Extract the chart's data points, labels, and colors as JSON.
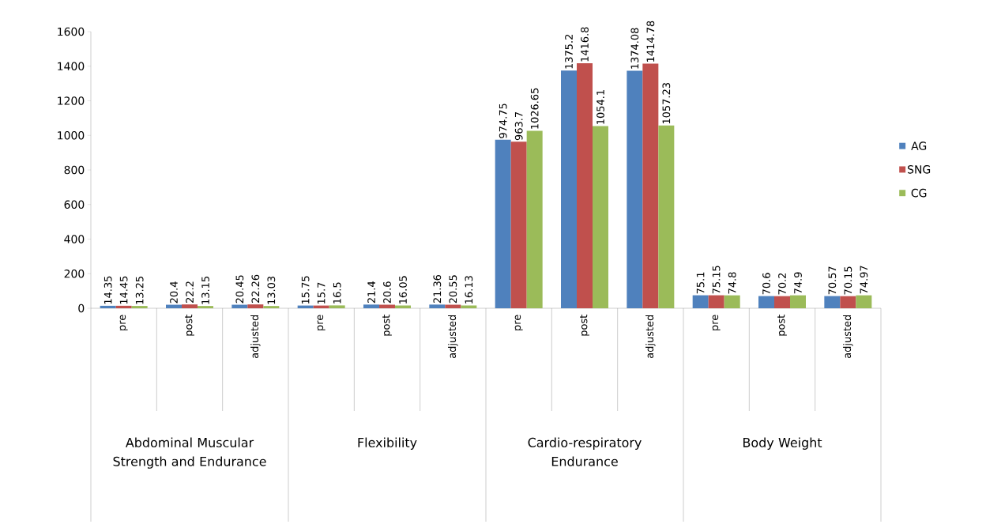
{
  "chart_data": {
    "type": "bar",
    "categories": [
      "pre",
      "post",
      "adjusted",
      "pre",
      "post",
      "adjusted",
      "pre",
      "post",
      "adjusted",
      "pre",
      "post",
      "adjusted"
    ],
    "series": [
      {
        "name": "AG",
        "color": "#4f81bd",
        "values": [
          14.35,
          20.4,
          20.45,
          15.75,
          21.4,
          21.36,
          974.75,
          1375.2,
          1374.08,
          75.1,
          70.6,
          70.57
        ],
        "value_labels": [
          "14.35",
          "20.4",
          "20.45",
          "15.75",
          "21.4",
          "21.36",
          "974.75",
          "1375.2",
          "1374.08",
          "75.1",
          "70.6",
          "70.57"
        ]
      },
      {
        "name": "SNG",
        "color": "#c0504d",
        "values": [
          14.45,
          22.2,
          22.26,
          15.7,
          20.6,
          20.55,
          963.7,
          1416.8,
          1414.78,
          75.15,
          70.2,
          70.15
        ],
        "value_labels": [
          "14.45",
          "22.2",
          "22.26",
          "15.7",
          "20.6",
          "20.55",
          "963.7",
          "1416.8",
          "1414.78",
          "75.15",
          "70.2",
          "70.15"
        ]
      },
      {
        "name": "CG",
        "color": "#9bbb59",
        "values": [
          13.25,
          13.15,
          13.03,
          16.5,
          16.05,
          16.13,
          1026.65,
          1054.1,
          1057.23,
          74.8,
          74.9,
          74.97
        ],
        "value_labels": [
          "13.25",
          "13.15",
          "13.03",
          "16.5",
          "16.05",
          "16.13",
          "1026.65",
          "1054.1",
          "1057.23",
          "74.8",
          "74.9",
          "74.97"
        ]
      }
    ],
    "annotations": [
      "Abdominal Muscular Strength and Endurance",
      "Flexibility",
      "Cardio-respiratory Endurance",
      "Body Weight"
    ],
    "ylim": [
      0,
      1600
    ],
    "yticks": [
      0,
      200,
      400,
      600,
      800,
      1000,
      1200,
      1400,
      1600
    ],
    "legend": "right",
    "grid": false
  }
}
